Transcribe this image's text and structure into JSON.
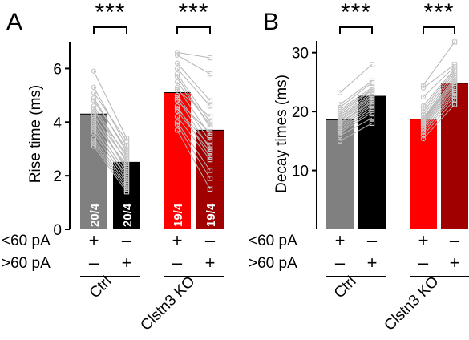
{
  "chart_data": [
    {
      "type": "bar",
      "panel": "A",
      "ylabel": "Rise time (ms)",
      "ylim": [
        0,
        7
      ],
      "yticks": [
        0,
        2,
        4,
        6
      ],
      "bars": [
        {
          "group": "Ctrl",
          "lt60": "+",
          "gt60": "–",
          "value": 4.3,
          "color": "#808080",
          "n_label": "20/4"
        },
        {
          "group": "Ctrl",
          "lt60": "–",
          "gt60": "+",
          "value": 2.5,
          "color": "#000000",
          "n_label": "20/4"
        },
        {
          "group": "Clstn3 KO",
          "lt60": "+",
          "gt60": "–",
          "value": 5.1,
          "color": "#ff0000",
          "n_label": "19/4"
        },
        {
          "group": "Clstn3 KO",
          "lt60": "–",
          "gt60": "+",
          "value": 3.7,
          "color": "#a00000",
          "n_label": "19/4"
        }
      ],
      "paired_points": [
        {
          "group": "Ctrl",
          "pairs": [
            [
              5.9,
              3.4
            ],
            [
              5.3,
              3.1
            ],
            [
              5.1,
              3.3
            ],
            [
              4.9,
              2.9
            ],
            [
              4.8,
              3.0
            ],
            [
              4.6,
              2.7
            ],
            [
              4.5,
              2.5
            ],
            [
              4.4,
              2.8
            ],
            [
              4.3,
              2.2
            ],
            [
              4.2,
              2.6
            ],
            [
              4.1,
              2.3
            ],
            [
              4.0,
              2.4
            ],
            [
              3.9,
              2.1
            ],
            [
              3.8,
              1.9
            ],
            [
              3.7,
              2.0
            ],
            [
              3.6,
              1.8
            ],
            [
              3.4,
              1.7
            ],
            [
              3.3,
              1.6
            ],
            [
              3.2,
              1.5
            ],
            [
              3.1,
              1.4
            ]
          ]
        },
        {
          "group": "Clstn3 KO",
          "pairs": [
            [
              6.6,
              6.4
            ],
            [
              6.5,
              5.8
            ],
            [
              6.2,
              4.8
            ],
            [
              6.0,
              4.6
            ],
            [
              5.8,
              4.0
            ],
            [
              5.7,
              3.8
            ],
            [
              5.5,
              3.9
            ],
            [
              5.3,
              3.5
            ],
            [
              5.2,
              4.2
            ],
            [
              5.0,
              3.3
            ],
            [
              4.9,
              3.0
            ],
            [
              4.8,
              3.6
            ],
            [
              4.6,
              2.7
            ],
            [
              4.5,
              3.1
            ],
            [
              4.4,
              2.9
            ],
            [
              4.2,
              2.6
            ],
            [
              4.0,
              2.2
            ],
            [
              3.9,
              1.9
            ],
            [
              3.7,
              1.5
            ]
          ]
        }
      ],
      "significance": [
        "***",
        "***"
      ]
    },
    {
      "type": "bar",
      "panel": "B",
      "ylabel": "Decay times (ms)",
      "ylim": [
        0,
        32
      ],
      "yticks": [
        10,
        20,
        30
      ],
      "bars": [
        {
          "group": "Ctrl",
          "lt60": "+",
          "gt60": "–",
          "value": 18.6,
          "color": "#808080"
        },
        {
          "group": "Ctrl",
          "lt60": "–",
          "gt60": "+",
          "value": 22.6,
          "color": "#000000"
        },
        {
          "group": "Clstn3 KO",
          "lt60": "+",
          "gt60": "–",
          "value": 18.7,
          "color": "#ff0000"
        },
        {
          "group": "Clstn3 KO",
          "lt60": "–",
          "gt60": "+",
          "value": 24.8,
          "color": "#a00000"
        }
      ],
      "paired_points": [
        {
          "group": "Ctrl",
          "pairs": [
            [
              23.2,
              28.0
            ],
            [
              21.2,
              25.2
            ],
            [
              20.7,
              24.9
            ],
            [
              20.3,
              24.1
            ],
            [
              20.0,
              23.8
            ],
            [
              19.7,
              23.6
            ],
            [
              19.4,
              23.2
            ],
            [
              19.1,
              22.9
            ],
            [
              18.9,
              22.6
            ],
            [
              18.6,
              22.4
            ],
            [
              18.4,
              22.1
            ],
            [
              18.1,
              21.8
            ],
            [
              17.9,
              21.6
            ],
            [
              17.6,
              21.3
            ],
            [
              17.3,
              21.0
            ],
            [
              17.0,
              20.6
            ],
            [
              16.7,
              20.2
            ],
            [
              16.4,
              19.8
            ],
            [
              15.9,
              18.9
            ],
            [
              15.0,
              18.0
            ]
          ]
        },
        {
          "group": "Clstn3 KO",
          "pairs": [
            [
              24.5,
              31.8
            ],
            [
              24.0,
              28.0
            ],
            [
              22.5,
              27.6
            ],
            [
              21.0,
              27.2
            ],
            [
              20.5,
              26.9
            ],
            [
              20.0,
              26.5
            ],
            [
              19.5,
              26.1
            ],
            [
              19.0,
              25.7
            ],
            [
              18.8,
              25.4
            ],
            [
              18.6,
              25.1
            ],
            [
              18.4,
              24.8
            ],
            [
              18.1,
              24.5
            ],
            [
              17.9,
              24.1
            ],
            [
              17.6,
              23.8
            ],
            [
              17.3,
              23.4
            ],
            [
              16.9,
              23.0
            ],
            [
              16.5,
              22.6
            ],
            [
              16.0,
              22.0
            ],
            [
              15.4,
              21.2
            ]
          ]
        }
      ],
      "significance": [
        "***",
        "***"
      ]
    }
  ],
  "row_labels": {
    "lt60": "<60 pA",
    "gt60": ">60 pA"
  },
  "groups": [
    "Ctrl",
    "Clstn3 KO"
  ]
}
